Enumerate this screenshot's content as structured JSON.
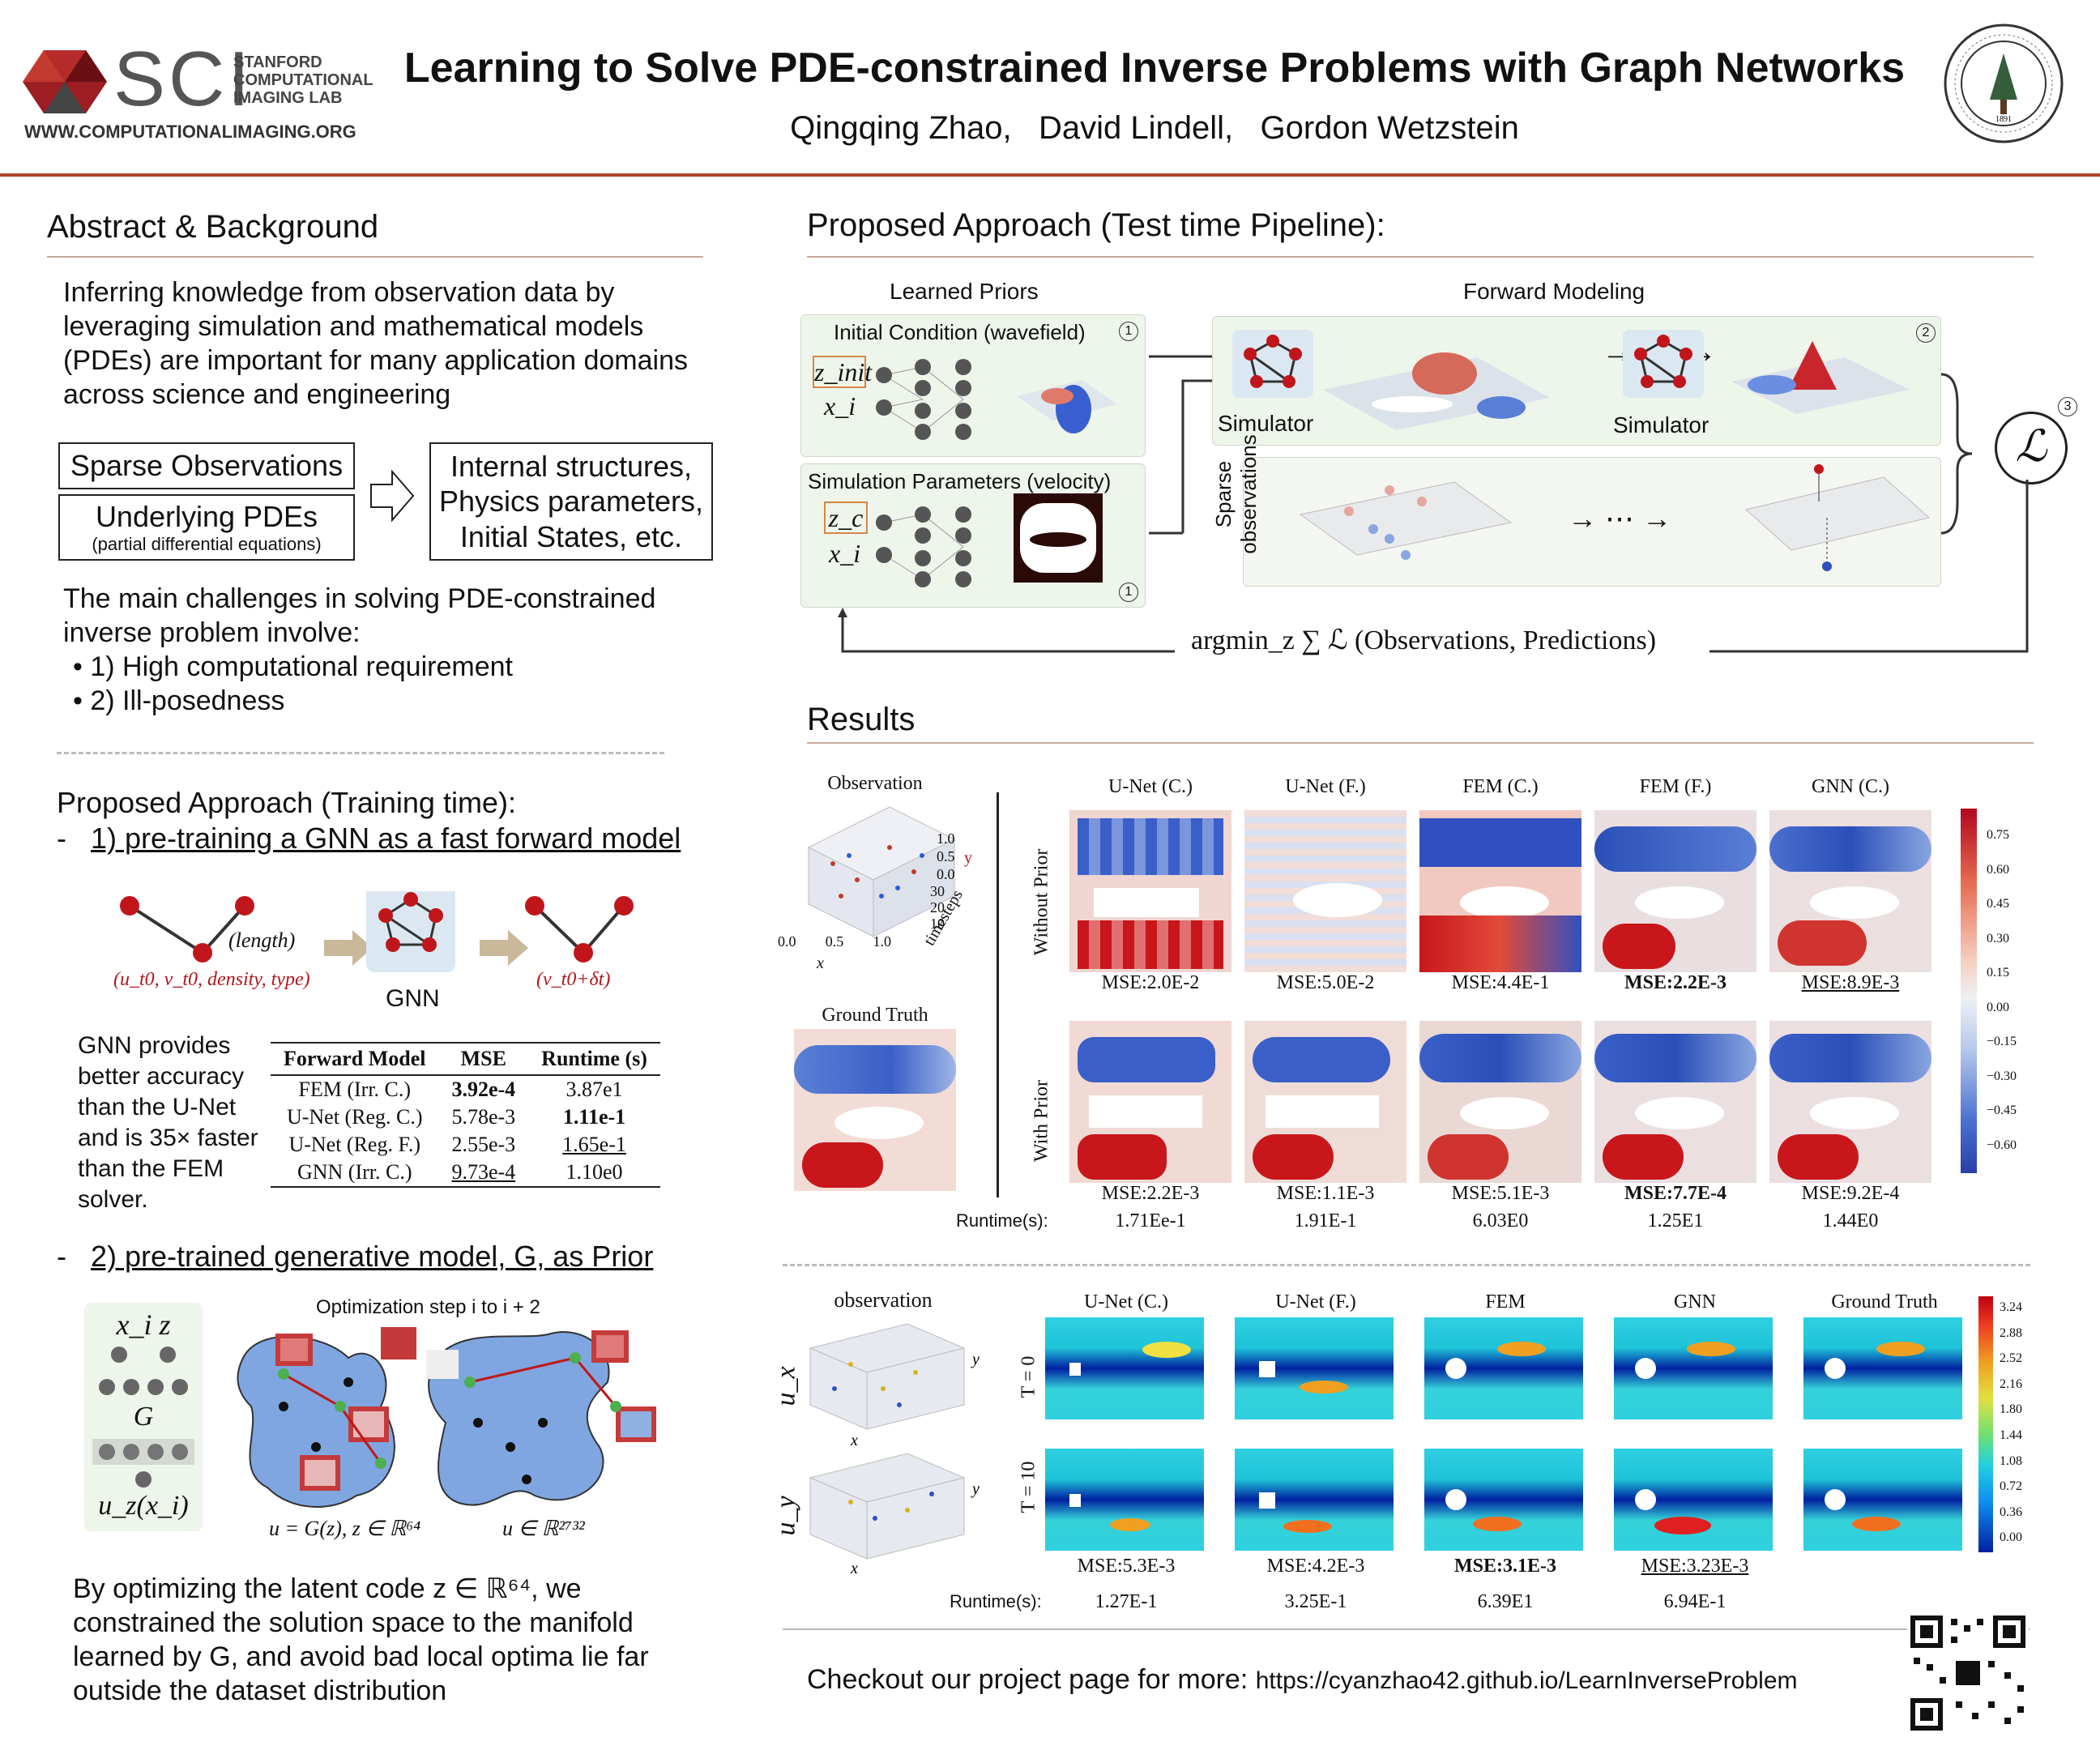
{
  "header": {
    "lab_logo_text": "SCI",
    "lab_name_lines": [
      "STANFORD",
      "COMPUTATIONAL",
      "IMAGING LAB"
    ],
    "lab_url": "WWW.COMPUTATIONALIMAGING.ORG",
    "title": "Learning to Solve PDE-constrained Inverse Problems with Graph Networks",
    "authors": "Qingqing Zhao,   David Lindell,   Gordon Wetzstein"
  },
  "abstract": {
    "heading": "Abstract & Background",
    "intro": "Inferring knowledge from observation data by leveraging simulation and mathematical models (PDEs) are important for many application domains across science and engineering",
    "box_sparse": "Sparse Observations",
    "box_pde": "Underlying PDEs",
    "box_pde_sub": "(partial differential equations)",
    "box_out": "Internal structures, Physics parameters, Initial States, etc.",
    "challenges_intro": "The main challenges in solving PDE-constrained inverse problem involve:",
    "challenges": [
      "• 1) High computational requirement",
      "• 2) Ill-posedness"
    ]
  },
  "training": {
    "heading": "Proposed Approach (Training time):",
    "step1": "1) pre-training a GNN as a fast forward model",
    "edge_label": "(length)",
    "input_label": "(u_t0, v_t0, density, type)",
    "gnn_label": "GNN",
    "output_label": "(v_t0+δt)",
    "gnn_text": "GNN provides better accuracy than the U-Net and is 35× faster than the FEM solver.",
    "table": {
      "headers": [
        "Forward Model",
        "MSE",
        "Runtime (s)"
      ],
      "rows": [
        [
          "FEM (Irr. C.)",
          "3.92e-4",
          "3.87e1"
        ],
        [
          "U-Net (Reg. C.)",
          "5.78e-3",
          "1.11e-1"
        ],
        [
          "U-Net (Reg. F.)",
          "2.55e-3",
          "1.65e-1"
        ],
        [
          "GNN (Irr. C.)",
          "9.73e-4",
          "1.10e0"
        ]
      ]
    },
    "step2": "2) pre-trained generative model, G, as Prior",
    "gen_top": "x_i  z",
    "gen_g": "G",
    "gen_bottom": "u_z(x_i)",
    "opt_title": "Optimization step i  to i + 2",
    "manifold_left": "u = G(z), z ∈ ℝ⁶⁴",
    "manifold_right": "u ∈ ℝ²⁷³²",
    "conclusion": "By optimizing the latent code z ∈ ℝ⁶⁴, we constrained the solution space to the manifold learned by G, and avoid bad local optima lie far outside the dataset distribution"
  },
  "pipeline": {
    "heading": "Proposed Approach (Test time Pipeline):",
    "learned_priors": "Learned Priors",
    "forward_modeling": "Forward Modeling",
    "initial_condition": "Initial Condition (wavefield)",
    "sim_params": "Simulation Parameters (velocity)",
    "z_init": "z_init",
    "x_i": "x_i",
    "z_c": "z_c",
    "simulator": "Simulator",
    "sparse_obs": "Sparse observations",
    "loss": "ℒ",
    "argmin": "argmin_z ∑ ℒ (Observations, Predictions)",
    "markers": [
      "1",
      "1",
      "2",
      "3"
    ]
  },
  "results": {
    "heading": "Results",
    "wave": {
      "observation": "Observation",
      "ground_truth": "Ground Truth",
      "columns": [
        "U-Net (C.)",
        "U-Net (F.)",
        "FEM (C.)",
        "FEM (F.)",
        "GNN (C.)"
      ],
      "row_without": "Without Prior",
      "row_with": "With Prior",
      "mse_without": [
        "MSE:2.0E-2",
        "MSE:5.0E-2",
        "MSE:4.4E-1",
        "MSE:2.2E-3",
        "MSE:8.9E-3"
      ],
      "mse_with": [
        "MSE:2.2E-3",
        "MSE:1.1E-3",
        "MSE:5.1E-3",
        "MSE:7.7E-4",
        "MSE:9.2E-4"
      ],
      "runtime_label": "Runtime(s):",
      "runtimes": [
        "1.71Ee-1",
        "1.91E-1",
        "6.03E0",
        "1.25E1",
        "1.44E0"
      ],
      "colorbar_ticks": [
        "0.75",
        "0.60",
        "0.45",
        "0.30",
        "0.15",
        "0.00",
        "−0.15",
        "−0.30",
        "−0.45",
        "−0.60"
      ],
      "axis_y_ticks": [
        "1.0",
        "0.5",
        "0.0"
      ],
      "axis_x_ticks": [
        "0.0",
        "0.5",
        "1.0"
      ],
      "axis_t_ticks": [
        "30",
        "20",
        "10"
      ],
      "axis_y": "y",
      "axis_x": "x",
      "axis_t": "timesteps"
    },
    "flow": {
      "observation": "observation",
      "columns": [
        "U-Net (C.)",
        "U-Net (F.)",
        "FEM",
        "GNN",
        "Ground Truth"
      ],
      "rows": [
        "T = 0",
        "T = 10"
      ],
      "ux": "u_x",
      "uy": "u_y",
      "mse": [
        "MSE:5.3E-3",
        "MSE:4.2E-3",
        "MSE:3.1E-3",
        "MSE:3.23E-3"
      ],
      "runtime_label": "Runtime(s):",
      "runtimes": [
        "1.27E-1",
        "3.25E-1",
        "6.39E1",
        "6.94E-1"
      ],
      "colorbar_ticks": [
        "3.24",
        "2.88",
        "2.52",
        "2.16",
        "1.80",
        "1.44",
        "1.08",
        "0.72",
        "0.36",
        "0.00"
      ]
    },
    "footer_text": "Checkout our project page for more:",
    "footer_url": "https://cyanzhao42.github.io/LearnInverseProblem"
  },
  "colors": {
    "accent_rule": "#b0452a",
    "node_red": "#c0161b",
    "panel_green": "#eef5ea",
    "highlight_orange": "#d4874a"
  }
}
